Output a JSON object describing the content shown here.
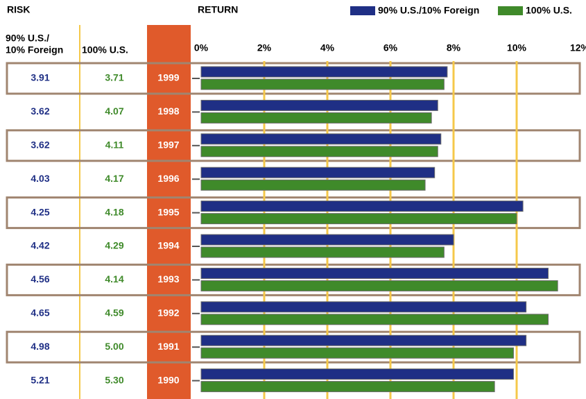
{
  "chart_data": {
    "type": "hbar",
    "risk_title": "RISK",
    "return_title": "RETURN",
    "risk_headers": [
      [
        "90% U.S./",
        "10% Foreign"
      ],
      [
        "100% U.S."
      ]
    ],
    "categories": [
      "1999",
      "1998",
      "1997",
      "1996",
      "1995",
      "1994",
      "1993",
      "1992",
      "1991",
      "1990"
    ],
    "series": [
      {
        "name": "90% U.S./10% Foreign",
        "color": "#1f2f85",
        "values": [
          7.8,
          7.5,
          7.6,
          7.4,
          10.2,
          8.0,
          11.0,
          10.3,
          10.3,
          9.9
        ],
        "risk": [
          "3.91",
          "3.62",
          "3.62",
          "4.03",
          "4.25",
          "4.42",
          "4.56",
          "4.65",
          "4.98",
          "5.21"
        ]
      },
      {
        "name": "100% U.S.",
        "color": "#3f8a2a",
        "values": [
          7.7,
          7.3,
          7.5,
          7.1,
          10.0,
          7.7,
          11.3,
          11.0,
          9.9,
          9.3
        ],
        "risk": [
          "3.71",
          "4.07",
          "4.11",
          "4.17",
          "4.18",
          "4.29",
          "4.14",
          "4.59",
          "5.00",
          "5.30"
        ]
      }
    ],
    "xlim": [
      0,
      12
    ],
    "xticks": [
      {
        "value": 0,
        "label": "0%"
      },
      {
        "value": 2,
        "label": "2%"
      },
      {
        "value": 4,
        "label": "4%"
      },
      {
        "value": 6,
        "label": "6%"
      },
      {
        "value": 8,
        "label": "8%"
      },
      {
        "value": 10,
        "label": "10%"
      },
      {
        "value": 12,
        "label": "12%"
      }
    ],
    "grid": true
  }
}
